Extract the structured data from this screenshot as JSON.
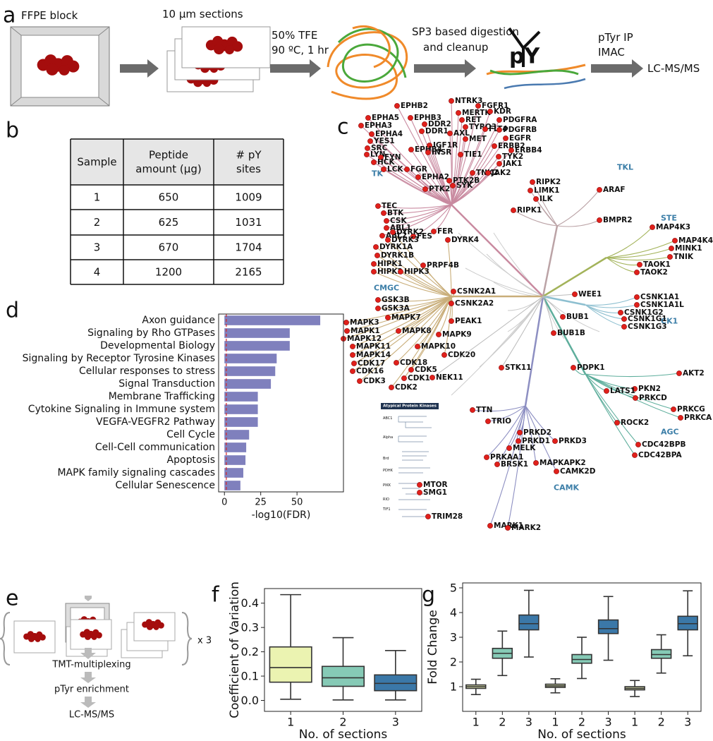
{
  "panels": [
    "a",
    "b",
    "c",
    "d",
    "e",
    "f",
    "g"
  ],
  "workflow": {
    "steps": [
      "FFPE block",
      "10 µm sections",
      "50% TFE",
      "90 ºC, 1 hr",
      "SP3 based digestion",
      "and cleanup",
      "pY",
      "pTyr IP",
      "IMAC",
      "LC-MS/MS"
    ]
  },
  "workflow_e": {
    "steps": [
      "x 3",
      "TMT-multiplexing",
      "pTyr enrichment",
      "LC-MS/MS"
    ]
  },
  "table": {
    "header": [
      [
        "Sample"
      ],
      [
        "Peptide",
        "amount (µg)"
      ],
      [
        "# pY",
        "sites"
      ]
    ],
    "rows": [
      [
        1,
        650,
        1009
      ],
      [
        2,
        625,
        1031
      ],
      [
        3,
        670,
        1704
      ],
      [
        4,
        1200,
        2165
      ]
    ]
  },
  "kinase_tree": {
    "groups": [
      {
        "name": "TK",
        "color": "#c98aa0",
        "kinases": [
          "NTRK3",
          "FGFR1",
          "EPHB2",
          "MERTK",
          "KDR",
          "EPHA5",
          "EPHB3",
          "RET",
          "DDR2",
          "TYRO3",
          "PDGFRA",
          "EPHA3",
          "DDR1",
          "AXL",
          "FLT4",
          "PDGFRB",
          "EPHA4",
          "MET",
          "EGFR",
          "YES1",
          "IGF1R",
          "ERBB2",
          "SRC",
          "EPHB4",
          "INSR",
          "ERBB4",
          "LYN",
          "FYN",
          "TIE1",
          "TYK2",
          "HCK",
          "JAK1",
          "LCK",
          "FGR",
          "EPHA2",
          "TNK2",
          "JAK2",
          "PTK2B",
          "PTK2",
          "SYK",
          "TEC",
          "BTK",
          "CSK",
          "ABL1",
          "ABL2",
          "FES",
          "FER"
        ]
      },
      {
        "name": "TKL",
        "color": "#bba3a6",
        "kinases": [
          "RIPK2",
          "LIMK1",
          "ARAF",
          "ILK",
          "RIPK1",
          "BMPR2"
        ]
      },
      {
        "name": "STE",
        "color": "#a3b35a",
        "kinases": [
          "MAP4K3",
          "MAP4K4",
          "MINK1",
          "TNIK",
          "TAOK1",
          "TAOK2"
        ]
      },
      {
        "name": "CMGC",
        "color": "#c9ae7a",
        "kinases": [
          "DYRK2",
          "DYRK3",
          "DYRK4",
          "DYRK1A",
          "DYRK1B",
          "HIPK1",
          "PRPF4B",
          "HIPK2",
          "HIPK3",
          "CSNK2A1",
          "GSK3B",
          "CSNK2A2",
          "GSK3A",
          "MAPK7",
          "PEAK1",
          "MAPK3",
          "MAPK1",
          "MAPK8",
          "MAPK12",
          "MAPK9",
          "MAPK11",
          "MAPK10",
          "MAPK14",
          "CDK20",
          "CDK17",
          "CDK18",
          "CDK16",
          "CDK5",
          "CDK1",
          "CDK3",
          "CDK2"
        ]
      },
      {
        "name": "CK1",
        "color": "#8dbfd0",
        "kinases": [
          "CSNK1A1",
          "CSNK1A1L",
          "CSNK1G2",
          "CSNK1G1",
          "CSNK1G3"
        ]
      },
      {
        "name": "AGC",
        "color": "#5eae9c",
        "kinases": [
          "PDPK1",
          "AKT2",
          "PKN2",
          "LATS1",
          "PRKCD",
          "PRKCG",
          "PRKCA",
          "ROCK2",
          "CDC42BPB",
          "CDC42BPA"
        ]
      },
      {
        "name": "CAMK",
        "color": "#8d8fc2",
        "kinases": [
          "TTN",
          "TRIO",
          "PRKD2",
          "PRKD1",
          "MELK",
          "PRKD3",
          "PRKAA1",
          "BRSK1",
          "MAPKAPK2",
          "CAMK2D",
          "MARK1",
          "MARK2"
        ]
      }
    ],
    "other": [
      "WEE1",
      "BUB1",
      "BUB1B",
      "STK11",
      "NEK11"
    ],
    "atypical": {
      "title": "Atypical Protein Kinases",
      "families": [
        "ABC1",
        "Alpha",
        "Brd",
        "PDHK",
        "PIKK",
        "RIO",
        "TIF1"
      ],
      "kinases": [
        "MTOR",
        "SMG1",
        "TRIM28"
      ]
    }
  },
  "chart_data": [
    {
      "type": "barh",
      "xlabel": "-log10(FDR)",
      "color": "#7f80bd",
      "categories": [
        "Axon guidance",
        "Signaling by Rho GTPases",
        "Developmental Biology",
        "Signaling by Receptor Tyrosine Kinases",
        "Cellular responses to stress",
        "Signal Transduction",
        "Membrane Trafficking",
        "Cytokine Signaling in Immune system",
        "VEGFA-VEGFR2 Pathway",
        "Cell Cycle",
        "Cell-Cell communication",
        "Apoptosis",
        "MAPK family signaling cascades",
        "Cellular Senescence"
      ],
      "values": [
        66,
        45,
        45,
        36,
        35,
        32,
        23,
        23,
        23,
        17,
        15,
        14.5,
        13,
        11
      ],
      "xlim": [
        -4,
        82
      ],
      "xticks": [
        0,
        25,
        50
      ],
      "threshold": 1.3,
      "threshold_color": "#d62728"
    },
    {
      "type": "box",
      "ylabel": "Coefficient of Variation",
      "xlabel": "No. of sections",
      "categories": [
        "1",
        "2",
        "3"
      ],
      "colors": [
        "#ebf3b1",
        "#86cab6",
        "#3b78a8"
      ],
      "boxes": [
        {
          "whislo": 0.005,
          "q1": 0.075,
          "med": 0.135,
          "q3": 0.22,
          "whishi": 0.435
        },
        {
          "whislo": 0.002,
          "q1": 0.058,
          "med": 0.093,
          "q3": 0.14,
          "whishi": 0.258
        },
        {
          "whislo": 0.002,
          "q1": 0.04,
          "med": 0.07,
          "q3": 0.105,
          "whishi": 0.205
        }
      ],
      "ylim": [
        -0.045,
        0.46
      ],
      "yticks": [
        {
          "value": 0,
          "label": "0.0"
        },
        {
          "value": 0.1,
          "label": "0.1"
        },
        {
          "value": 0.2,
          "label": "0.2"
        },
        {
          "value": 0.3,
          "label": "0.3"
        },
        {
          "value": 0.4,
          "label": "0.4"
        }
      ]
    },
    {
      "type": "box",
      "ylabel": "Fold Change",
      "xlabel": "No. of sections",
      "categories": [
        "1",
        "2",
        "3",
        "1",
        "2",
        "3",
        "1",
        "2",
        "3"
      ],
      "colors": [
        "#e4ebb3",
        "#86cab6",
        "#3b78a8",
        "#e4ebb3",
        "#86cab6",
        "#3b78a8",
        "#e4ebb3",
        "#86cab6",
        "#3b78a8"
      ],
      "boxes": [
        {
          "whislo": 0.68,
          "q1": 0.93,
          "med": 1.0,
          "q3": 1.07,
          "whishi": 1.3
        },
        {
          "whislo": 1.45,
          "q1": 2.15,
          "med": 2.35,
          "q3": 2.55,
          "whishi": 3.25
        },
        {
          "whislo": 2.2,
          "q1": 3.3,
          "med": 3.55,
          "q3": 3.9,
          "whishi": 4.9
        },
        {
          "whislo": 0.75,
          "q1": 0.97,
          "med": 1.03,
          "q3": 1.1,
          "whishi": 1.32
        },
        {
          "whislo": 1.33,
          "q1": 1.95,
          "med": 2.1,
          "q3": 2.3,
          "whishi": 3.0
        },
        {
          "whislo": 2.07,
          "q1": 3.15,
          "med": 3.35,
          "q3": 3.7,
          "whishi": 4.65
        },
        {
          "whislo": 0.6,
          "q1": 0.87,
          "med": 0.93,
          "q3": 1.0,
          "whishi": 1.25
        },
        {
          "whislo": 1.55,
          "q1": 2.15,
          "med": 2.3,
          "q3": 2.5,
          "whishi": 3.1
        },
        {
          "whislo": 2.25,
          "q1": 3.3,
          "med": 3.55,
          "q3": 3.85,
          "whishi": 4.88
        }
      ],
      "ylim": [
        0,
        5.2
      ],
      "yticks": [
        1,
        2,
        3,
        4,
        5
      ]
    }
  ]
}
